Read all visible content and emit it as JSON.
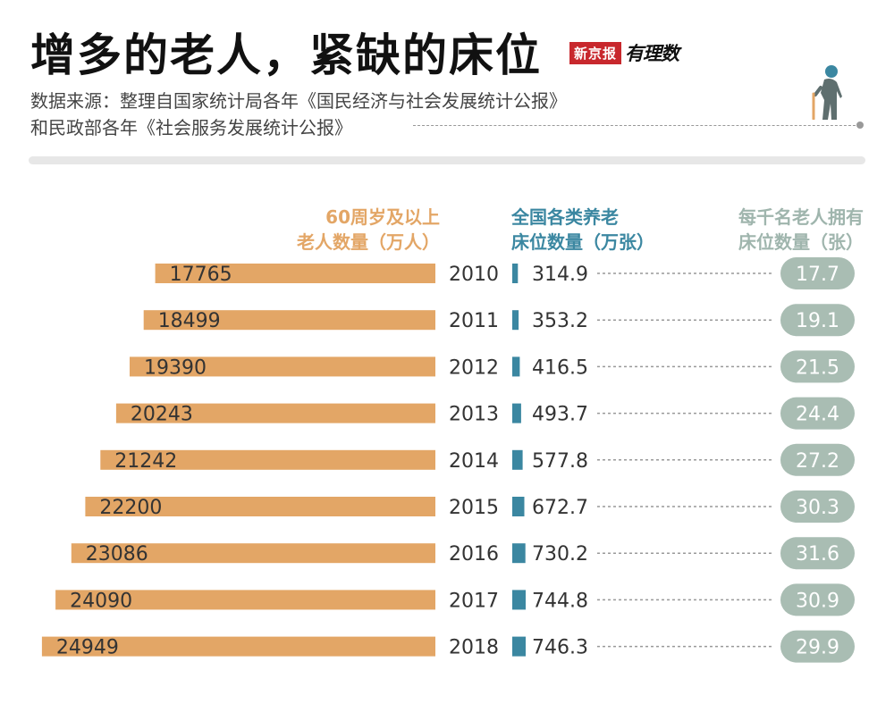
{
  "title": "增多的老人，紧缺的床位",
  "logo": {
    "brand": "新京报",
    "section": "有理数"
  },
  "source": {
    "line1": "数据来源：整理自国家统计局各年《国民经济与社会发展统计公报》",
    "line2": "和民政部各年《社会服务发展统计公报》"
  },
  "headers": {
    "population": [
      "60周岁及以上",
      "老人数量（万人）"
    ],
    "beds": [
      "全国各类养老",
      "床位数量（万张）"
    ],
    "per_thousand": [
      "每千名老人拥有",
      "床位数量（张）"
    ]
  },
  "colors": {
    "population": "#e3a666",
    "beds": "#3b87a1",
    "per_thousand": "#a9bdb3"
  },
  "chart_data": {
    "type": "bar",
    "categories": [
      "2010",
      "2011",
      "2012",
      "2013",
      "2014",
      "2015",
      "2016",
      "2017",
      "2018"
    ],
    "series": [
      {
        "name": "60周岁及以上老人数量（万人）",
        "values": [
          17765,
          18499,
          19390,
          20243,
          21242,
          22200,
          23086,
          24090,
          24949
        ]
      },
      {
        "name": "全国各类养老床位数量（万张）",
        "values": [
          "314.9",
          "353.2",
          "416.5",
          "493.7",
          "577.8",
          "672.7",
          "730.2",
          "744.8",
          "746.3"
        ]
      },
      {
        "name": "每千名老人拥有床位数量（张）",
        "values": [
          "17.7",
          "19.1",
          "21.5",
          "24.4",
          "27.2",
          "30.3",
          "31.6",
          "30.9",
          "29.9"
        ]
      }
    ],
    "title": "增多的老人，紧缺的床位"
  }
}
